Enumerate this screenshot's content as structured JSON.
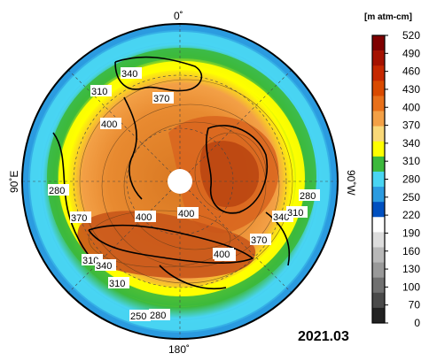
{
  "map": {
    "date_label": "2021.03",
    "meridian_labels": {
      "top": "0˚",
      "bottom": "180˚",
      "left": "90˚E",
      "right": "90˚W"
    },
    "contour_labels": [
      "340",
      "310",
      "370",
      "400",
      "400",
      "280",
      "370",
      "400",
      "400",
      "280",
      "340",
      "310",
      "370",
      "400",
      "310",
      "340",
      "310",
      "250",
      "280"
    ]
  },
  "colorbar": {
    "unit_label": "[m atm-cm]",
    "ticks": [
      "520",
      "490",
      "460",
      "430",
      "400",
      "370",
      "340",
      "310",
      "280",
      "250",
      "220",
      "190",
      "160",
      "130",
      "100",
      "70",
      "0"
    ],
    "colors": [
      "#7f0000",
      "#a51200",
      "#c62800",
      "#d94a00",
      "#e8701a",
      "#f3a046",
      "#f9d878",
      "#ffff00",
      "#3cb93c",
      "#49d5f2",
      "#2b9be0",
      "#0050c0",
      "#ffffff",
      "#dddddd",
      "#b8b8b8",
      "#999999",
      "#707070",
      "#4a4a4a",
      "#222222"
    ]
  }
}
